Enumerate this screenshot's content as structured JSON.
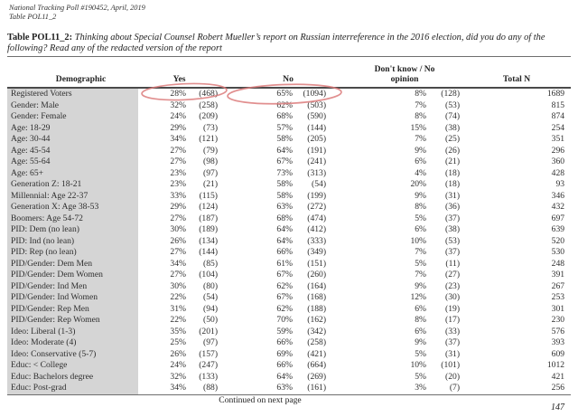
{
  "meta": {
    "poll_line": "National Tracking Poll #190452, April, 2019",
    "table_line": "Table POL11_2"
  },
  "question": {
    "label": "Table POL11_2:",
    "text": "Thinking about Special Counsel Robert Mueller’s report on Russian interreference in the 2016 election, did you do any of the following? Read any of the redacted version of the report"
  },
  "table": {
    "headers": {
      "demographic": "Demographic",
      "yes": "Yes",
      "no": "No",
      "dont_know": "Don't know / No\nopinion",
      "total_n": "Total N"
    },
    "rows": [
      {
        "demographic": "Registered Voters",
        "yes_pct": "28%",
        "yes_n": "(468)",
        "no_pct": "65%",
        "no_n": "(1094)",
        "dk_pct": "8%",
        "dk_n": "(128)",
        "total_n": "1689"
      },
      {
        "demographic": "Gender: Male",
        "yes_pct": "32%",
        "yes_n": "(258)",
        "no_pct": "62%",
        "no_n": "(503)",
        "dk_pct": "7%",
        "dk_n": "(53)",
        "total_n": "815"
      },
      {
        "demographic": "Gender: Female",
        "yes_pct": "24%",
        "yes_n": "(209)",
        "no_pct": "68%",
        "no_n": "(590)",
        "dk_pct": "8%",
        "dk_n": "(74)",
        "total_n": "874"
      },
      {
        "demographic": "Age: 18-29",
        "yes_pct": "29%",
        "yes_n": "(73)",
        "no_pct": "57%",
        "no_n": "(144)",
        "dk_pct": "15%",
        "dk_n": "(38)",
        "total_n": "254"
      },
      {
        "demographic": "Age: 30-44",
        "yes_pct": "34%",
        "yes_n": "(121)",
        "no_pct": "58%",
        "no_n": "(205)",
        "dk_pct": "7%",
        "dk_n": "(25)",
        "total_n": "351"
      },
      {
        "demographic": "Age: 45-54",
        "yes_pct": "27%",
        "yes_n": "(79)",
        "no_pct": "64%",
        "no_n": "(191)",
        "dk_pct": "9%",
        "dk_n": "(26)",
        "total_n": "296"
      },
      {
        "demographic": "Age: 55-64",
        "yes_pct": "27%",
        "yes_n": "(98)",
        "no_pct": "67%",
        "no_n": "(241)",
        "dk_pct": "6%",
        "dk_n": "(21)",
        "total_n": "360"
      },
      {
        "demographic": "Age: 65+",
        "yes_pct": "23%",
        "yes_n": "(97)",
        "no_pct": "73%",
        "no_n": "(313)",
        "dk_pct": "4%",
        "dk_n": "(18)",
        "total_n": "428"
      },
      {
        "demographic": "Generation Z: 18-21",
        "yes_pct": "23%",
        "yes_n": "(21)",
        "no_pct": "58%",
        "no_n": "(54)",
        "dk_pct": "20%",
        "dk_n": "(18)",
        "total_n": "93"
      },
      {
        "demographic": "Millennial: Age 22-37",
        "yes_pct": "33%",
        "yes_n": "(115)",
        "no_pct": "58%",
        "no_n": "(199)",
        "dk_pct": "9%",
        "dk_n": "(31)",
        "total_n": "346"
      },
      {
        "demographic": "Generation X: Age 38-53",
        "yes_pct": "29%",
        "yes_n": "(124)",
        "no_pct": "63%",
        "no_n": "(272)",
        "dk_pct": "8%",
        "dk_n": "(36)",
        "total_n": "432"
      },
      {
        "demographic": "Boomers: Age 54-72",
        "yes_pct": "27%",
        "yes_n": "(187)",
        "no_pct": "68%",
        "no_n": "(474)",
        "dk_pct": "5%",
        "dk_n": "(37)",
        "total_n": "697"
      },
      {
        "demographic": "PID: Dem (no lean)",
        "yes_pct": "30%",
        "yes_n": "(189)",
        "no_pct": "64%",
        "no_n": "(412)",
        "dk_pct": "6%",
        "dk_n": "(38)",
        "total_n": "639"
      },
      {
        "demographic": "PID: Ind (no lean)",
        "yes_pct": "26%",
        "yes_n": "(134)",
        "no_pct": "64%",
        "no_n": "(333)",
        "dk_pct": "10%",
        "dk_n": "(53)",
        "total_n": "520"
      },
      {
        "demographic": "PID: Rep (no lean)",
        "yes_pct": "27%",
        "yes_n": "(144)",
        "no_pct": "66%",
        "no_n": "(349)",
        "dk_pct": "7%",
        "dk_n": "(37)",
        "total_n": "530"
      },
      {
        "demographic": "PID/Gender: Dem Men",
        "yes_pct": "34%",
        "yes_n": "(85)",
        "no_pct": "61%",
        "no_n": "(151)",
        "dk_pct": "5%",
        "dk_n": "(11)",
        "total_n": "248"
      },
      {
        "demographic": "PID/Gender: Dem Women",
        "yes_pct": "27%",
        "yes_n": "(104)",
        "no_pct": "67%",
        "no_n": "(260)",
        "dk_pct": "7%",
        "dk_n": "(27)",
        "total_n": "391"
      },
      {
        "demographic": "PID/Gender: Ind Men",
        "yes_pct": "30%",
        "yes_n": "(80)",
        "no_pct": "62%",
        "no_n": "(164)",
        "dk_pct": "9%",
        "dk_n": "(23)",
        "total_n": "267"
      },
      {
        "demographic": "PID/Gender: Ind Women",
        "yes_pct": "22%",
        "yes_n": "(54)",
        "no_pct": "67%",
        "no_n": "(168)",
        "dk_pct": "12%",
        "dk_n": "(30)",
        "total_n": "253"
      },
      {
        "demographic": "PID/Gender: Rep Men",
        "yes_pct": "31%",
        "yes_n": "(94)",
        "no_pct": "62%",
        "no_n": "(188)",
        "dk_pct": "6%",
        "dk_n": "(19)",
        "total_n": "301"
      },
      {
        "demographic": "PID/Gender: Rep Women",
        "yes_pct": "22%",
        "yes_n": "(50)",
        "no_pct": "70%",
        "no_n": "(162)",
        "dk_pct": "8%",
        "dk_n": "(17)",
        "total_n": "230"
      },
      {
        "demographic": "Ideo: Liberal (1-3)",
        "yes_pct": "35%",
        "yes_n": "(201)",
        "no_pct": "59%",
        "no_n": "(342)",
        "dk_pct": "6%",
        "dk_n": "(33)",
        "total_n": "576"
      },
      {
        "demographic": "Ideo: Moderate (4)",
        "yes_pct": "25%",
        "yes_n": "(97)",
        "no_pct": "66%",
        "no_n": "(258)",
        "dk_pct": "9%",
        "dk_n": "(37)",
        "total_n": "393"
      },
      {
        "demographic": "Ideo: Conservative (5-7)",
        "yes_pct": "26%",
        "yes_n": "(157)",
        "no_pct": "69%",
        "no_n": "(421)",
        "dk_pct": "5%",
        "dk_n": "(31)",
        "total_n": "609"
      },
      {
        "demographic": "Educ: < College",
        "yes_pct": "24%",
        "yes_n": "(247)",
        "no_pct": "66%",
        "no_n": "(664)",
        "dk_pct": "10%",
        "dk_n": "(101)",
        "total_n": "1012"
      },
      {
        "demographic": "Educ: Bachelors degree",
        "yes_pct": "32%",
        "yes_n": "(133)",
        "no_pct": "64%",
        "no_n": "(269)",
        "dk_pct": "5%",
        "dk_n": "(20)",
        "total_n": "421"
      },
      {
        "demographic": "Educ: Post-grad",
        "yes_pct": "34%",
        "yes_n": "(88)",
        "no_pct": "63%",
        "no_n": "(161)",
        "dk_pct": "3%",
        "dk_n": "(7)",
        "total_n": "256"
      }
    ]
  },
  "annotations": {
    "color": "#dc7b7b",
    "circled_values": [
      "28% (468)",
      "65% (1094)"
    ]
  },
  "footer": {
    "continued": "Continued on next page",
    "page_number": "147"
  },
  "colors": {
    "demographic_column_bg": "#d5d5d5",
    "rule_dark": "#4a4a4a",
    "rule_light": "#6e6e6e"
  }
}
